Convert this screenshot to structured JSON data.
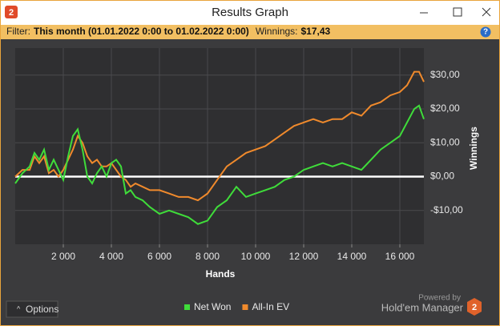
{
  "window": {
    "title": "Results Graph",
    "logo": "2",
    "help": "?"
  },
  "filter": {
    "label": "Filter:",
    "value": "This month (01.01.2022 0:00 to 01.02.2022 0:00)",
    "winnings_label": "Winnings:",
    "winnings": "$17,43"
  },
  "footer": {
    "options": "Options",
    "powered_by": "Powered by",
    "brand": "Hold'em Manager",
    "brand_logo": "2"
  },
  "chart_data": {
    "type": "line",
    "xlabel": "Hands",
    "ylabel": "Winnings",
    "grid": true,
    "legend": "bottom",
    "x": [
      0,
      300,
      600,
      800,
      1000,
      1200,
      1400,
      1600,
      1800,
      2000,
      2200,
      2400,
      2600,
      2800,
      3000,
      3200,
      3400,
      3600,
      3800,
      4000,
      4200,
      4400,
      4600,
      4800,
      5000,
      5300,
      5600,
      6000,
      6400,
      6800,
      7200,
      7600,
      8000,
      8400,
      8800,
      9200,
      9600,
      10000,
      10400,
      10800,
      11200,
      11600,
      12000,
      12400,
      12800,
      13200,
      13600,
      14000,
      14400,
      14800,
      15200,
      15600,
      16000,
      16300,
      16600,
      16800,
      17000
    ],
    "series": [
      {
        "name": "Net Won",
        "color": "#3fdc3a",
        "values": [
          -2,
          1,
          3,
          7,
          5,
          8,
          2,
          5,
          2,
          -1,
          6,
          12,
          14,
          8,
          0,
          -2,
          1,
          3,
          0,
          4,
          5,
          3,
          -5,
          -4,
          -6,
          -7,
          -9,
          -11,
          -10,
          -11,
          -12,
          -14,
          -13,
          -9,
          -7,
          -3,
          -6,
          -5,
          -4,
          -3,
          -1,
          0,
          2,
          3,
          4,
          3,
          4,
          3,
          2,
          5,
          8,
          10,
          12,
          16,
          20,
          21,
          17
        ]
      },
      {
        "name": "All-In EV",
        "color": "#f08a2c",
        "values": [
          0,
          2,
          2,
          6,
          4,
          6,
          1,
          2,
          0,
          2,
          5,
          8,
          12,
          10,
          6,
          4,
          5,
          3,
          3,
          4,
          2,
          0,
          -1,
          -3,
          -2,
          -3,
          -4,
          -4,
          -5,
          -6,
          -6,
          -7,
          -5,
          -1,
          3,
          5,
          7,
          8,
          9,
          11,
          13,
          15,
          16,
          17,
          16,
          17,
          17,
          19,
          18,
          21,
          22,
          24,
          25,
          27,
          31,
          31,
          28
        ]
      }
    ],
    "xlim": [
      0,
      17000
    ],
    "ylim": [
      -20,
      38
    ],
    "xticks": [
      {
        "value": 2000,
        "label": "2 000"
      },
      {
        "value": 4000,
        "label": "4 000"
      },
      {
        "value": 6000,
        "label": "6 000"
      },
      {
        "value": 8000,
        "label": "8 000"
      },
      {
        "value": 10000,
        "label": "10 000"
      },
      {
        "value": 12000,
        "label": "12 000"
      },
      {
        "value": 14000,
        "label": "14 000"
      },
      {
        "value": 16000,
        "label": "16 000"
      }
    ],
    "yticks": [
      {
        "value": -10,
        "label": "-$10,00"
      },
      {
        "value": 0,
        "label": "$0,00"
      },
      {
        "value": 10,
        "label": "$10,00"
      },
      {
        "value": 20,
        "label": "$20,00"
      },
      {
        "value": 30,
        "label": "$30,00"
      }
    ]
  }
}
